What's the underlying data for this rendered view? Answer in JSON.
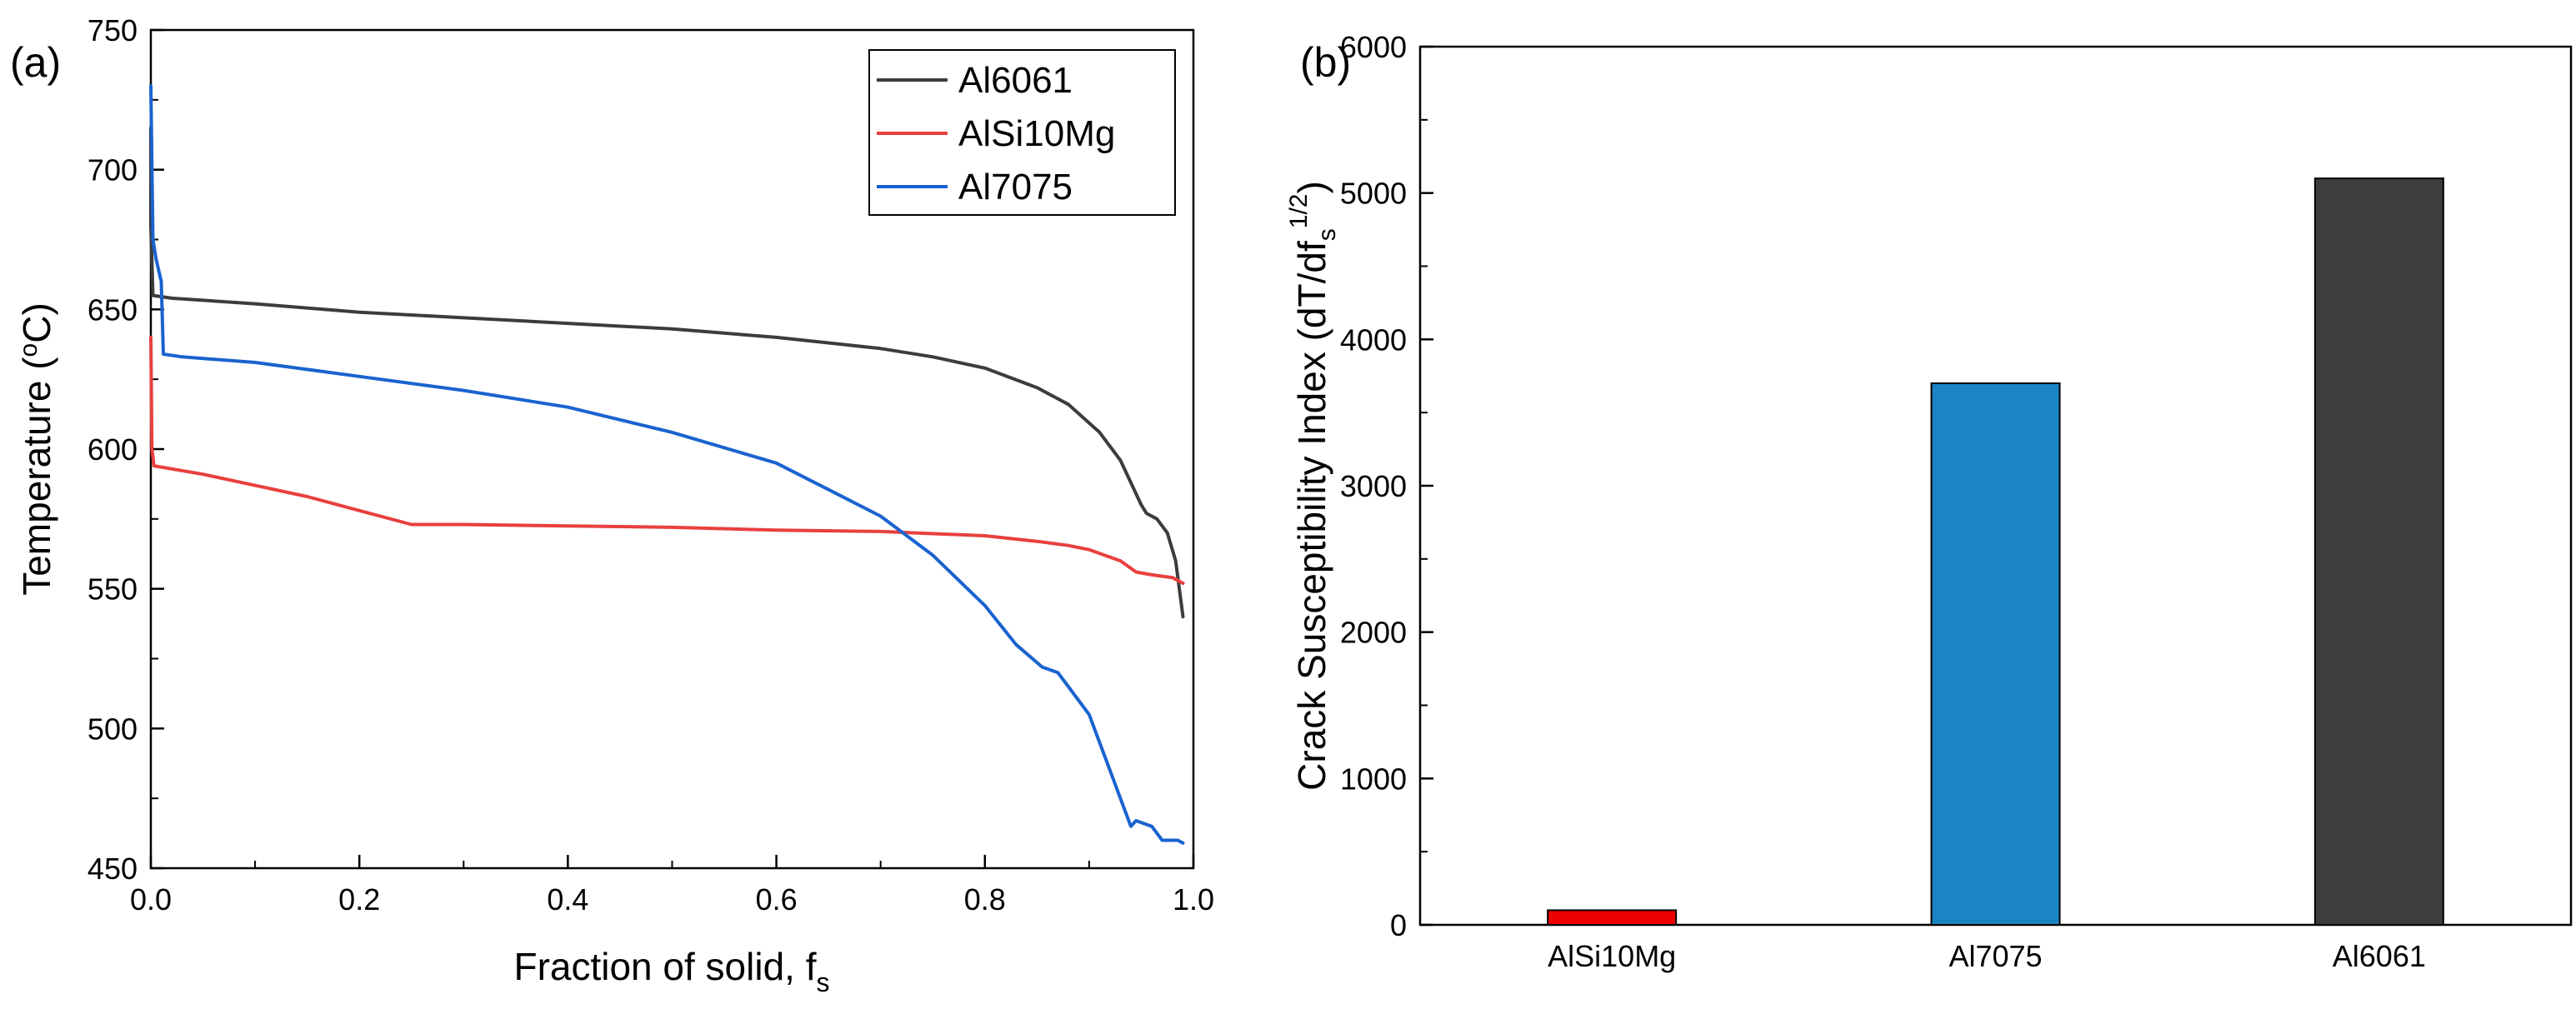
{
  "chart_data": [
    {
      "panel_label": "(a)",
      "type": "line",
      "xlabel": "Fraction of solid, f",
      "xlabel_sub": "s",
      "ylabel_pre": "Temperature (",
      "ylabel_sup": "o",
      "ylabel_post": "C)",
      "xlim": [
        0.0,
        1.0
      ],
      "ylim": [
        450,
        750
      ],
      "xticks": [
        "0.0",
        "0.2",
        "0.4",
        "0.6",
        "0.8",
        "1.0"
      ],
      "yticks": [
        "450",
        "500",
        "550",
        "600",
        "650",
        "700",
        "750"
      ],
      "legend_position": "top-right",
      "series": [
        {
          "name": "Al6061",
          "color": "#3c3c3c",
          "x": [
            0.0,
            0.0,
            0.002,
            0.02,
            0.1,
            0.2,
            0.3,
            0.4,
            0.5,
            0.6,
            0.7,
            0.75,
            0.8,
            0.85,
            0.88,
            0.91,
            0.93,
            0.95,
            0.955,
            0.965,
            0.975,
            0.983,
            0.99
          ],
          "y": [
            715,
            680,
            655,
            654,
            652,
            649,
            647,
            645,
            643,
            640,
            636,
            633,
            629,
            622,
            616,
            606,
            596,
            580,
            577,
            575,
            570,
            560,
            540
          ]
        },
        {
          "name": "AlSi10Mg",
          "color": "#e8403e",
          "x": [
            0.0,
            0.001,
            0.003,
            0.05,
            0.1,
            0.15,
            0.2,
            0.25,
            0.3,
            0.4,
            0.5,
            0.6,
            0.7,
            0.8,
            0.85,
            0.88,
            0.9,
            0.93,
            0.945,
            0.96,
            0.98,
            0.99
          ],
          "y": [
            640,
            600,
            594,
            591,
            587,
            583,
            578,
            573,
            573,
            572.5,
            572,
            571,
            570.5,
            569,
            567,
            565.5,
            564,
            560,
            556,
            555,
            554,
            552
          ]
        },
        {
          "name": "Al7075",
          "color": "#1a63cf",
          "x": [
            0.0,
            0.002,
            0.005,
            0.01,
            0.012,
            0.03,
            0.1,
            0.2,
            0.3,
            0.4,
            0.5,
            0.6,
            0.7,
            0.75,
            0.8,
            0.83,
            0.855,
            0.87,
            0.88,
            0.9,
            0.92,
            0.93,
            0.94,
            0.945,
            0.96,
            0.97,
            0.985,
            0.99
          ],
          "y": [
            730,
            675,
            668,
            660,
            634,
            633,
            631,
            626,
            621,
            615,
            606,
            595,
            576,
            562,
            544,
            530,
            522,
            520,
            515,
            505,
            485,
            475,
            465,
            467,
            465,
            460,
            460,
            459
          ]
        }
      ]
    },
    {
      "panel_label": "(b)",
      "type": "bar",
      "ylabel_pre": "Crack Susceptibility Index (dT/df",
      "ylabel_sub": "s",
      "ylabel_sup": "1/2",
      "ylabel_post": ")",
      "ylim": [
        0,
        6000
      ],
      "yticks": [
        "0",
        "1000",
        "2000",
        "3000",
        "4000",
        "5000",
        "6000"
      ],
      "categories": [
        "AlSi10Mg",
        "Al7075",
        "Al6061"
      ],
      "values": [
        100,
        3700,
        5100
      ],
      "colors": [
        "#ee0000",
        "#1a84c4",
        "#3d3d3d"
      ]
    }
  ]
}
